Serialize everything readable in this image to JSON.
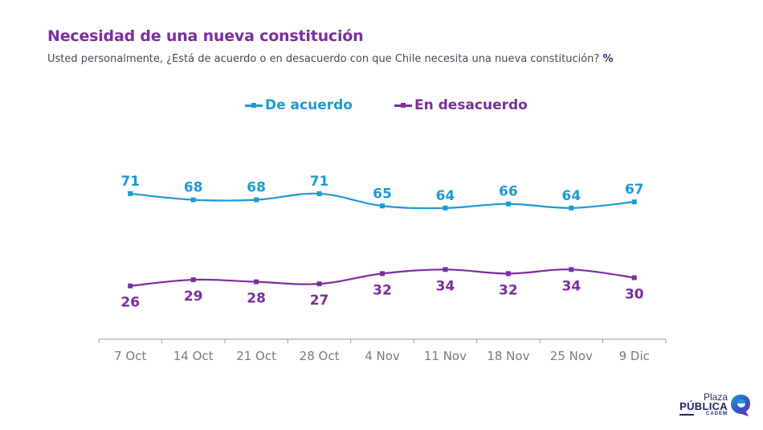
{
  "header": {
    "title": "Necesidad de una nueva constitución",
    "subtitle": "Usted personalmente, ¿Está de acuerdo o en desacuerdo con que Chile necesita una nueva constitución?",
    "unit": "%"
  },
  "logo": {
    "line1": "Plaza",
    "line2": "PÚBLICA",
    "line3": "CADEM"
  },
  "chart_data": {
    "type": "line",
    "title": "Necesidad de una nueva constitución",
    "subtitle": "Usted personalmente, ¿Está de acuerdo o en desacuerdo con que Chile necesita una nueva constitución? %",
    "xlabel": "",
    "ylabel": "",
    "categories": [
      "7 Oct",
      "14 Oct",
      "21 Oct",
      "28 Oct",
      "4 Nov",
      "11 Nov",
      "18 Nov",
      "25 Nov",
      "9 Dic"
    ],
    "series": [
      {
        "name": "De acuerdo",
        "color": "#1b9ad6",
        "values": [
          71,
          68,
          68,
          71,
          65,
          64,
          66,
          64,
          67
        ],
        "label_position": "above"
      },
      {
        "name": "En desacuerdo",
        "color": "#7b2d9e",
        "values": [
          26,
          29,
          28,
          27,
          32,
          34,
          32,
          34,
          30
        ],
        "label_position": "below"
      }
    ],
    "ylim": [
      0,
      95
    ],
    "grid": false,
    "y_axis_visible": false,
    "legend_position": "top-center",
    "smooth": true,
    "data_labels": true
  }
}
